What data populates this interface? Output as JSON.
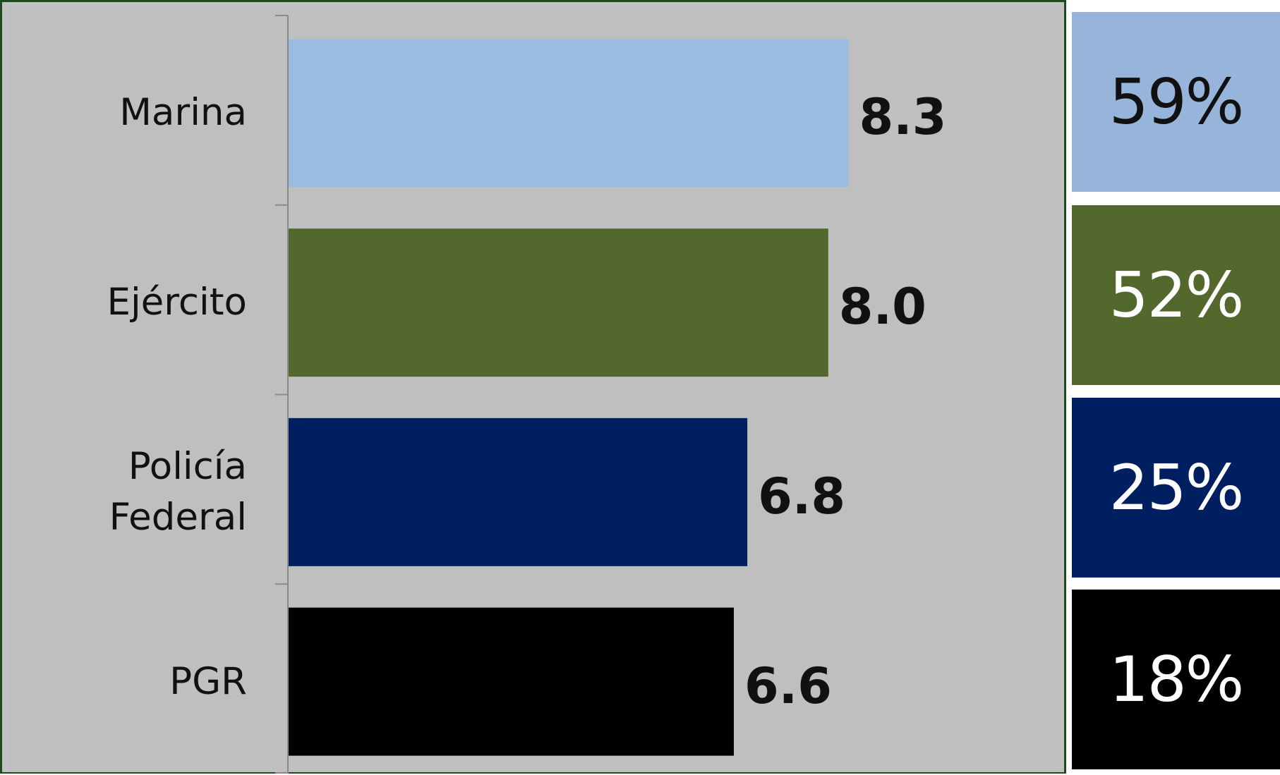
{
  "chart_data": {
    "type": "bar",
    "orientation": "horizontal",
    "categories": [
      "Marina",
      "Ejército",
      "Policía Federal",
      "PGR"
    ],
    "category_lines": [
      [
        "Marina"
      ],
      [
        "Ejército"
      ],
      [
        "Policía",
        "Federal"
      ],
      [
        "PGR"
      ]
    ],
    "values": [
      8.3,
      8.0,
      6.8,
      6.6
    ],
    "value_labels": [
      "8.3",
      "8.0",
      "6.8",
      "6.6"
    ],
    "bar_colors": [
      "#9bbbe3",
      "#53682c",
      "#001f60",
      "#000000"
    ],
    "xlim": [
      0,
      10
    ],
    "grid": false,
    "legend": "none",
    "side_percentages": [
      {
        "label": "59%",
        "color": "#97b5db",
        "text_color": "#111111"
      },
      {
        "label": "52%",
        "color": "#53682c",
        "text_color": "#ffffff"
      },
      {
        "label": "25%",
        "color": "#001f60",
        "text_color": "#ffffff"
      },
      {
        "label": "18%",
        "color": "#000000",
        "text_color": "#ffffff"
      }
    ]
  }
}
